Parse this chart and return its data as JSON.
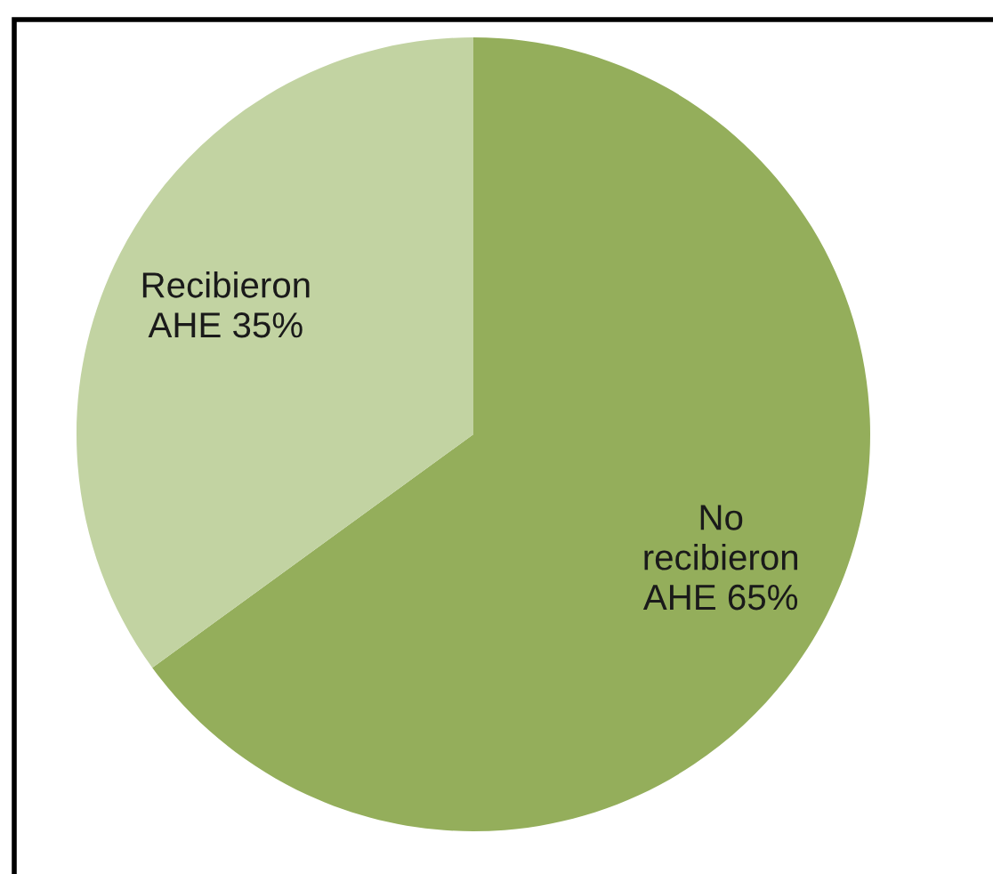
{
  "chart_data": {
    "type": "pie",
    "categories": [
      "No\nrecibieron\nAHE",
      "Recibieron\nAHE"
    ],
    "values": [
      65,
      35
    ],
    "colors": [
      "#94ae5b",
      "#c2d3a2"
    ],
    "value_labels": [
      "65%",
      "35%"
    ]
  }
}
